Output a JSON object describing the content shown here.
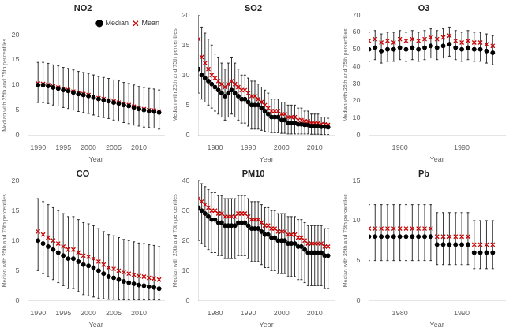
{
  "chart_data": [
    {
      "type": "scatter",
      "title": "NO2",
      "xlabel": "Year",
      "ylabel": "Median with 25th and 75th percentiles",
      "x": [
        1990,
        1991,
        1992,
        1993,
        1994,
        1995,
        1996,
        1997,
        1998,
        1999,
        2000,
        2001,
        2002,
        2003,
        2004,
        2005,
        2006,
        2007,
        2008,
        2009,
        2010,
        2011,
        2012,
        2013,
        2014
      ],
      "series": [
        {
          "name": "Median",
          "color": "#000000",
          "marker": "o",
          "values": [
            10.0,
            10.0,
            9.8,
            9.5,
            9.3,
            9.0,
            8.8,
            8.5,
            8.2,
            8.0,
            7.8,
            7.5,
            7.2,
            7.0,
            6.8,
            6.5,
            6.3,
            6.0,
            5.8,
            5.5,
            5.2,
            5.0,
            4.8,
            4.7,
            4.5
          ],
          "lower": [
            6.5,
            6.5,
            6.3,
            6.0,
            5.8,
            5.5,
            5.3,
            5.0,
            4.7,
            4.5,
            4.3,
            4.0,
            3.7,
            3.5,
            3.3,
            3.0,
            2.8,
            2.5,
            2.3,
            2.0,
            1.8,
            1.6,
            1.5,
            1.4,
            1.2
          ],
          "upper": [
            14.5,
            14.5,
            14.3,
            14.0,
            13.8,
            13.5,
            13.3,
            13.0,
            12.7,
            12.5,
            12.3,
            12.0,
            11.7,
            11.5,
            11.3,
            11.0,
            10.8,
            10.5,
            10.3,
            10.0,
            9.7,
            9.5,
            9.3,
            9.2,
            9.0
          ]
        },
        {
          "name": "Mean",
          "color": "#cc0000",
          "marker": "x",
          "values": [
            10.3,
            10.2,
            10.0,
            9.7,
            9.5,
            9.2,
            9.0,
            8.7,
            8.4,
            8.2,
            8.0,
            7.7,
            7.4,
            7.2,
            7.0,
            6.7,
            6.5,
            6.2,
            6.0,
            5.7,
            5.4,
            5.2,
            5.0,
            4.9,
            4.7
          ]
        }
      ],
      "xlim": [
        1988,
        2015
      ],
      "xticks": [
        1990,
        1995,
        2000,
        2005,
        2010
      ],
      "ylim": [
        0,
        20
      ],
      "yticks": [
        0,
        5,
        10,
        15,
        20
      ],
      "grid": false,
      "legend": "upper right"
    },
    {
      "type": "scatter",
      "title": "SO2",
      "xlabel": "Year",
      "ylabel": "Median with 25th and 75th percentiles",
      "x": [
        1975,
        1976,
        1977,
        1978,
        1979,
        1980,
        1981,
        1982,
        1983,
        1984,
        1985,
        1986,
        1987,
        1988,
        1989,
        1990,
        1991,
        1992,
        1993,
        1994,
        1995,
        1996,
        1997,
        1998,
        1999,
        2000,
        2001,
        2002,
        2003,
        2004,
        2005,
        2006,
        2007,
        2008,
        2009,
        2010,
        2011,
        2012,
        2013,
        2014
      ],
      "series": [
        {
          "color": "#000000",
          "marker": "o",
          "values": [
            11,
            10,
            9.5,
            9,
            8.5,
            8,
            7.5,
            7,
            6.5,
            7,
            7.5,
            7,
            6.5,
            6,
            6,
            5.5,
            5,
            5,
            5,
            4.5,
            4,
            3.5,
            3,
            3,
            3,
            2.5,
            2.5,
            2,
            2,
            2,
            1.8,
            1.8,
            1.7,
            1.7,
            1.5,
            1.5,
            1.5,
            1.4,
            1.4,
            1.3
          ],
          "lower": [
            7,
            6,
            5.5,
            5,
            4.5,
            4,
            3.5,
            3,
            2.5,
            3,
            3.5,
            3,
            2.5,
            2,
            2,
            1.5,
            1.0,
            1.0,
            1.0,
            0.8,
            0.6,
            0.5,
            0.4,
            0.4,
            0.4,
            0.3,
            0.3,
            0.2,
            0.2,
            0.2,
            0.2,
            0.2,
            0.2,
            0.2,
            0.15,
            0.15,
            0.15,
            0.1,
            0.1,
            0.1
          ],
          "upper": [
            20,
            18,
            17,
            16,
            15,
            13.5,
            13,
            12,
            11,
            12,
            13,
            12,
            11,
            10,
            10,
            9.5,
            9,
            9,
            8.5,
            8,
            7.5,
            7,
            6,
            6,
            6,
            5.5,
            5.5,
            5,
            5,
            5,
            4.5,
            4.5,
            4,
            4,
            3.5,
            3.5,
            3.5,
            3,
            3,
            2.8
          ]
        },
        {
          "color": "#cc0000",
          "marker": "x",
          "values": [
            16,
            13,
            12,
            11,
            10,
            9.5,
            9,
            8.5,
            8,
            8.5,
            9,
            8.5,
            8,
            7.5,
            7.5,
            7,
            6.5,
            6.5,
            6,
            5.5,
            5,
            4.5,
            4,
            4,
            4,
            3.5,
            3.5,
            3,
            3,
            3,
            2.5,
            2.5,
            2.3,
            2.3,
            2.0,
            2.0,
            2.0,
            1.8,
            1.8,
            1.7
          ]
        }
      ],
      "xlim": [
        1975,
        2016
      ],
      "xticks": [
        1980,
        1990,
        2000,
        2010
      ],
      "ylim": [
        0,
        20
      ],
      "yticks": [
        0,
        5,
        10,
        15,
        20
      ],
      "grid": false
    },
    {
      "type": "scatter",
      "title": "O3",
      "xlabel": "Year",
      "ylabel": "Median with 25th and 75th percentiles",
      "x": [
        1975,
        1976,
        1977,
        1978,
        1979,
        1980,
        1981,
        1982,
        1983,
        1984,
        1985,
        1986,
        1987,
        1988,
        1989,
        1990,
        1991,
        1992,
        1993,
        1994,
        1995
      ],
      "series": [
        {
          "color": "#000000",
          "marker": "o",
          "values": [
            50,
            51,
            49,
            50,
            50,
            51,
            50,
            51,
            50,
            51,
            52,
            51,
            52,
            53,
            51,
            50,
            51,
            50,
            50,
            49,
            48
          ],
          "lower": [
            43,
            44,
            42,
            43,
            43,
            44,
            43,
            44,
            43,
            44,
            45,
            44,
            45,
            46,
            44,
            43,
            44,
            43,
            43,
            42,
            41
          ],
          "upper": [
            60,
            61,
            59,
            60,
            60,
            61,
            60,
            61,
            60,
            61,
            62,
            61,
            62,
            63,
            61,
            60,
            61,
            60,
            60,
            59,
            58
          ]
        },
        {
          "color": "#cc0000",
          "marker": "x",
          "values": [
            55,
            56,
            54,
            55,
            54,
            56,
            55,
            56,
            55,
            56,
            57,
            56,
            57,
            58,
            55,
            54,
            55,
            54,
            54,
            53,
            52
          ]
        }
      ],
      "xlim": [
        1975,
        1997
      ],
      "xticks": [
        1980,
        1990
      ],
      "ylim": [
        0,
        70
      ],
      "yticks": [
        0,
        10,
        20,
        30,
        40,
        50,
        60,
        70
      ],
      "grid": false
    },
    {
      "type": "scatter",
      "title": "CO",
      "xlabel": "Year",
      "ylabel": "Median with 25th and 75th percentiles",
      "x": [
        1990,
        1991,
        1992,
        1993,
        1994,
        1995,
        1996,
        1997,
        1998,
        1999,
        2000,
        2001,
        2002,
        2003,
        2004,
        2005,
        2006,
        2007,
        2008,
        2009,
        2010,
        2011,
        2012,
        2013,
        2014
      ],
      "series": [
        {
          "color": "#000000",
          "marker": "o",
          "values": [
            10,
            9.5,
            9,
            8.5,
            8,
            7.5,
            7,
            7,
            6.5,
            6,
            5.8,
            5.5,
            5,
            4.5,
            4.0,
            3.8,
            3.5,
            3.2,
            3.0,
            2.8,
            2.6,
            2.5,
            2.3,
            2.2,
            2.0
          ],
          "lower": [
            5,
            4.5,
            4,
            3.5,
            3,
            2.5,
            2,
            2,
            1.5,
            1.0,
            0.8,
            0.6,
            0.4,
            0.3,
            0.2,
            0.2,
            0.1,
            0.1,
            0.1,
            0.1,
            0.1,
            0.1,
            0.1,
            0.1,
            0.1
          ],
          "upper": [
            17,
            16.5,
            16,
            15.5,
            15,
            14.5,
            14,
            14,
            13.5,
            13,
            12.8,
            12.5,
            12,
            11.5,
            11.0,
            10.8,
            10.5,
            10.2,
            10.0,
            9.8,
            9.6,
            9.5,
            9.3,
            9.2,
            9.0
          ]
        },
        {
          "color": "#cc0000",
          "marker": "x",
          "values": [
            11.5,
            11,
            10.5,
            10,
            9.5,
            9,
            8.5,
            8.5,
            8,
            7.5,
            7.3,
            7,
            6.5,
            6,
            5.5,
            5.3,
            5,
            4.7,
            4.5,
            4.3,
            4.1,
            4.0,
            3.8,
            3.7,
            3.5
          ]
        }
      ],
      "xlim": [
        1988,
        2015
      ],
      "xticks": [
        1990,
        1995,
        2000,
        2005,
        2010
      ],
      "ylim": [
        0,
        20
      ],
      "yticks": [
        0,
        5,
        10,
        15,
        20
      ],
      "grid": false
    },
    {
      "type": "scatter",
      "title": "PM10",
      "xlabel": "Year",
      "ylabel": "Median with 25th and 75th percentiles",
      "x": [
        1975,
        1976,
        1977,
        1978,
        1979,
        1980,
        1981,
        1982,
        1983,
        1984,
        1985,
        1986,
        1987,
        1988,
        1989,
        1990,
        1991,
        1992,
        1993,
        1994,
        1995,
        1996,
        1997,
        1998,
        1999,
        2000,
        2001,
        2002,
        2003,
        2004,
        2005,
        2006,
        2007,
        2008,
        2009,
        2010,
        2011,
        2012,
        2013,
        2014
      ],
      "series": [
        {
          "color": "#000000",
          "marker": "o",
          "values": [
            31,
            30,
            29,
            28,
            27,
            27,
            26,
            26,
            25,
            25,
            25,
            25,
            26,
            26,
            26,
            25,
            24,
            24,
            24,
            23,
            22,
            22,
            21,
            21,
            20,
            20,
            20,
            19,
            19,
            19,
            18,
            18,
            17,
            16,
            16,
            16,
            16,
            16,
            15,
            15
          ],
          "lower": [
            20,
            19,
            18,
            17,
            16,
            16,
            15,
            15,
            14,
            14,
            14,
            14,
            15,
            15,
            15,
            14,
            13,
            13,
            13,
            12,
            11,
            11,
            10,
            10,
            9,
            9,
            9,
            8,
            8,
            8,
            7,
            7,
            6,
            5,
            5,
            5,
            5,
            5,
            4,
            4
          ],
          "upper": [
            40,
            39,
            38,
            37,
            36,
            36,
            35,
            35,
            34,
            34,
            34,
            34,
            35,
            35,
            35,
            34,
            33,
            33,
            33,
            32,
            31,
            31,
            30,
            30,
            29,
            29,
            29,
            28,
            28,
            28,
            27,
            27,
            26,
            25,
            25,
            25,
            25,
            25,
            24,
            24
          ]
        },
        {
          "color": "#cc0000",
          "marker": "x",
          "values": [
            34,
            33,
            32,
            31,
            30,
            30,
            29,
            29,
            28,
            28,
            28,
            28,
            29,
            29,
            29,
            28,
            27,
            27,
            27,
            26,
            25,
            25,
            24,
            24,
            23,
            23,
            23,
            22,
            22,
            22,
            21,
            21,
            20,
            19,
            19,
            19,
            19,
            19,
            18,
            18
          ]
        }
      ],
      "xlim": [
        1975,
        2016
      ],
      "xticks": [
        1980,
        1990,
        2000,
        2010
      ],
      "ylim": [
        0,
        40
      ],
      "yticks": [
        0,
        10,
        20,
        30,
        40
      ],
      "grid": false
    },
    {
      "type": "scatter",
      "title": "Pb",
      "xlabel": "Year",
      "ylabel": "Median with 25th and 75th percentiles",
      "x": [
        1975,
        1976,
        1977,
        1978,
        1979,
        1980,
        1981,
        1982,
        1983,
        1984,
        1985,
        1986,
        1987,
        1988,
        1989,
        1990,
        1991,
        1992,
        1993,
        1994,
        1995
      ],
      "series": [
        {
          "color": "#000000",
          "marker": "o",
          "values": [
            8,
            8,
            8,
            8,
            8,
            8,
            8,
            8,
            8,
            8,
            8,
            7,
            7,
            7,
            7,
            7,
            7,
            6,
            6,
            6,
            6
          ],
          "lower": [
            5,
            5,
            5,
            5,
            5,
            5,
            5,
            5,
            5,
            5,
            5,
            4.5,
            4.5,
            4.5,
            4.5,
            4.5,
            4.5,
            4,
            4,
            4,
            4
          ],
          "upper": [
            12,
            12,
            12,
            12,
            12,
            12,
            12,
            12,
            12,
            12,
            12,
            11,
            11,
            11,
            11,
            11,
            11,
            10,
            10,
            10,
            10
          ]
        },
        {
          "color": "#cc0000",
          "marker": "x",
          "values": [
            9,
            9,
            9,
            9,
            9,
            9,
            9,
            9,
            9,
            9,
            9,
            8,
            8,
            8,
            8,
            8,
            8,
            7,
            7,
            7,
            7
          ]
        }
      ],
      "xlim": [
        1975,
        1997
      ],
      "xticks": [
        1980,
        1990
      ],
      "ylim": [
        0,
        15
      ],
      "yticks": [
        0,
        5,
        10,
        15
      ],
      "grid": false
    }
  ]
}
